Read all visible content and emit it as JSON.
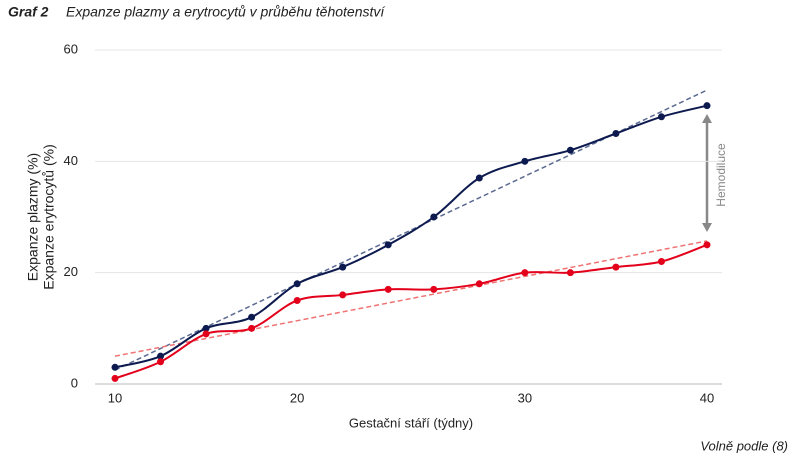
{
  "chart_data": {
    "type": "line",
    "figure_label": "Graf 2",
    "title": "Expanze plazmy a erytrocytů v průběhu těhotenství",
    "x_label": "Gestační stáří (týdny)",
    "source": "Volně podle (8)",
    "annotation": "Hemodiluce",
    "categories": [
      10,
      null,
      null,
      null,
      20,
      null,
      null,
      null,
      null,
      30,
      null,
      null,
      null,
      40
    ],
    "series": [
      {
        "name": "Expanze plazmy (%)",
        "color": "#0d1a4f",
        "values": [
          3,
          5,
          10,
          12,
          18,
          21,
          25,
          30,
          37,
          40,
          42,
          45,
          48,
          50
        ]
      },
      {
        "name": "Expanze erytrocytů (%)",
        "color": "#e3001b",
        "values": [
          1,
          4,
          9,
          10,
          15,
          16,
          17,
          17,
          18,
          20,
          20,
          21,
          22,
          25
        ]
      }
    ],
    "trendlines": [
      {
        "color": "#5b6a90",
        "values": [
          2.5,
          52.8
        ]
      },
      {
        "color": "#f07272",
        "values": [
          5,
          25.7
        ]
      }
    ],
    "ylim": [
      0,
      60
    ],
    "yticks": [
      0,
      20,
      40,
      60
    ],
    "grid": true
  }
}
